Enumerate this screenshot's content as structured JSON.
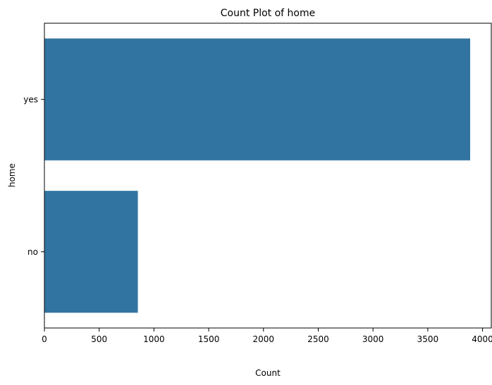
{
  "chart_data": {
    "type": "bar",
    "orientation": "horizontal",
    "title": "Count Plot of home",
    "xlabel": "Count",
    "ylabel": "home",
    "categories": [
      "yes",
      "no"
    ],
    "values": [
      3887,
      853
    ],
    "xlim": [
      0,
      4080
    ],
    "xticks": [
      0,
      500,
      1000,
      1500,
      2000,
      2500,
      3000,
      3500,
      4000
    ],
    "grid": false,
    "bar_color": "#3274a1"
  }
}
